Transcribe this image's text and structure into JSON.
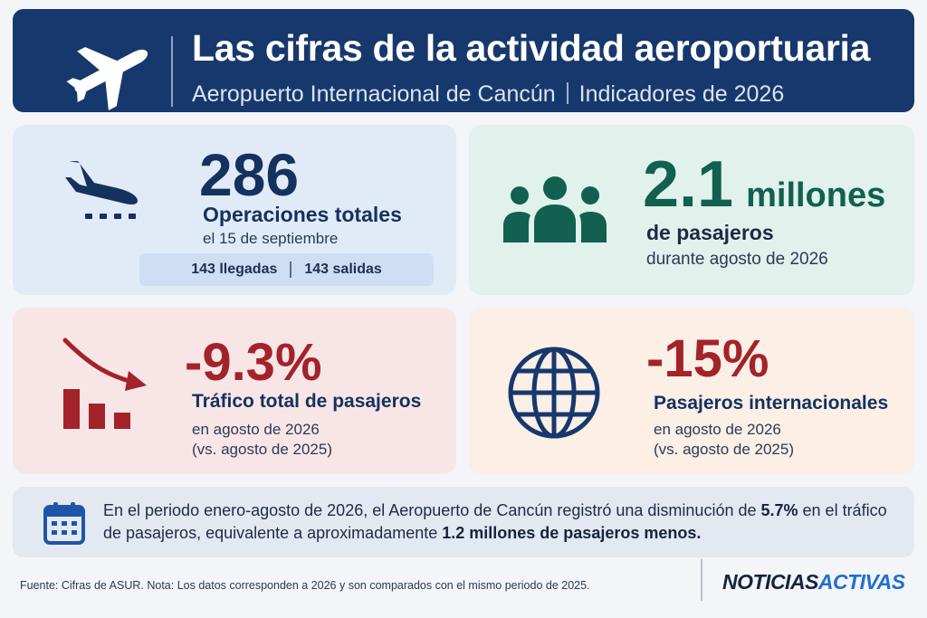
{
  "header": {
    "title": "Las cifras de la actividad aeroportuaria",
    "subtitle_left": "Aeropuerto Internacional de Cancún",
    "subtitle_right": "Indicadores de 2026",
    "icon": "airplane-icon"
  },
  "operations": {
    "value": "286",
    "label": "Operaciones totales",
    "date": "el 15 de septiembre",
    "arrivals": "143 llegadas",
    "departures": "143 salidas",
    "icon": "plane-landing-icon"
  },
  "passengers": {
    "value": "2.1",
    "unit": "millones",
    "label": "de pasajeros",
    "period": "durante agosto de 2026",
    "icon": "people-icon"
  },
  "traffic": {
    "value": "-9.3%",
    "label": "Tráfico total de pasajeros",
    "period": "en agosto de 2026",
    "comparison": "(vs. agosto de 2025)",
    "icon": "declining-bar-chart-icon"
  },
  "international": {
    "value": "-15%",
    "label": "Pasajeros internacionales",
    "period": "en agosto de 2026",
    "comparison": "(vs. agosto de 2025)",
    "icon": "globe-icon"
  },
  "note": {
    "part1": "En el periodo enero-agosto de 2026, el Aeropuerto de Cancún registró una disminución de ",
    "highlight1": "5.7%",
    "part2": " en el tráfico de pasajeros, equivalente a aproximadamente ",
    "highlight2": "1.2 millones de pasajeros menos.",
    "icon": "calendar-icon"
  },
  "footer": {
    "source": "Fuente: Cifras de ASUR. Nota: Los datos corresponden a 2026 y son comparados con el mismo periodo de 2025.",
    "brand_part1": "NOTICIAS",
    "brand_part2": "ACTIVAS"
  },
  "colors": {
    "header_bg": "#17386c",
    "blue_accent": "#15315e",
    "green_accent": "#12604f",
    "red_accent": "#a3232b",
    "brand_blue": "#1f6fd1"
  }
}
